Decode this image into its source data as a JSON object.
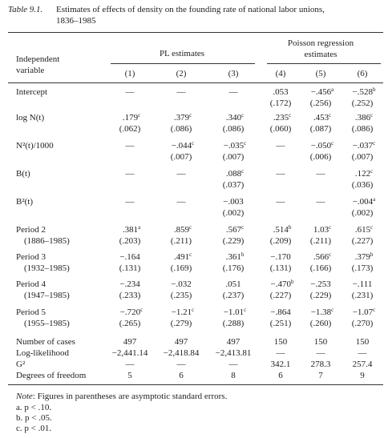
{
  "caption": {
    "number": "Table 9.1.",
    "text": "Estimates of effects of density on the founding rate of national labor unions,",
    "text2": "1836–1985"
  },
  "header": {
    "variable": [
      "Independent",
      "variable"
    ],
    "group1": "PL estimates",
    "group2": [
      "Poisson regression",
      "estimates"
    ],
    "columns": [
      "(1)",
      "(2)",
      "(3)",
      "(4)",
      "(5)",
      "(6)"
    ]
  },
  "rows": [
    {
      "label": "Intercept",
      "est": [
        "—",
        "—",
        "—",
        ".053",
        {
          "text": "−.456",
          "sup": "a"
        },
        {
          "text": "−.528",
          "sup": "b"
        }
      ],
      "se": [
        null,
        null,
        null,
        "(.172)",
        "(.256)",
        "(.252)"
      ]
    },
    {
      "label": "log N(t)",
      "est": [
        {
          "text": ".179",
          "sup": "c"
        },
        {
          "text": ".379",
          "sup": "c"
        },
        {
          "text": ".340",
          "sup": "c"
        },
        {
          "text": ".235",
          "sup": "c"
        },
        {
          "text": ".453",
          "sup": "c"
        },
        {
          "text": ".386",
          "sup": "c"
        }
      ],
      "se": [
        "(.062)",
        "(.086)",
        "(.086)",
        "(.060)",
        "(.087)",
        "(.086)"
      ]
    },
    {
      "label": "N²(t)/1000",
      "est": [
        "—",
        {
          "text": "−.044",
          "sup": "c"
        },
        {
          "text": "−.035",
          "sup": "c"
        },
        "—",
        {
          "text": "−.050",
          "sup": "c"
        },
        {
          "text": "−.037",
          "sup": "c"
        }
      ],
      "se": [
        null,
        "(.007)",
        "(.007)",
        null,
        "(.006)",
        "(.007)"
      ]
    },
    {
      "label": "B(t)",
      "est": [
        "—",
        "—",
        {
          "text": ".088",
          "sup": "c"
        },
        "—",
        "—",
        {
          "text": ".122",
          "sup": "c"
        }
      ],
      "se": [
        null,
        null,
        "(.037)",
        null,
        null,
        "(.036)"
      ]
    },
    {
      "label": "B²(t)",
      "est": [
        "—",
        "—",
        "−.003",
        "—",
        "—",
        {
          "text": "−.004",
          "sup": "a"
        }
      ],
      "se": [
        null,
        null,
        "(.002)",
        null,
        null,
        "(.002)"
      ]
    },
    {
      "label": "Period 2",
      "sublabel": "(1886–1985)",
      "est": [
        {
          "text": ".381",
          "sup": "a"
        },
        {
          "text": ".859",
          "sup": "c"
        },
        {
          "text": ".567",
          "sup": "c"
        },
        {
          "text": ".514",
          "sup": "b"
        },
        {
          "text": "1.03",
          "sup": "c"
        },
        {
          "text": ".615",
          "sup": "c"
        }
      ],
      "se": [
        "(.203)",
        "(.211)",
        "(.229)",
        "(.209)",
        "(.211)",
        "(.227)"
      ]
    },
    {
      "label": "Period 3",
      "sublabel": "(1932–1985)",
      "est": [
        "−.164",
        {
          "text": ".491",
          "sup": "c"
        },
        {
          "text": ".361",
          "sup": "b"
        },
        "−.170",
        {
          "text": ".566",
          "sup": "c"
        },
        {
          "text": ".379",
          "sup": "b"
        }
      ],
      "se": [
        "(.131)",
        "(.169)",
        "(.176)",
        "(.131)",
        "(.166)",
        "(.173)"
      ]
    },
    {
      "label": "Period 4",
      "sublabel": "(1947–1985)",
      "est": [
        "−.234",
        "−.032",
        ".051",
        {
          "text": "−.470",
          "sup": "b"
        },
        "−.253",
        "−.111"
      ],
      "se": [
        "(.233)",
        "(.235)",
        "(.237)",
        "(.227)",
        "(.229)",
        "(.231)"
      ]
    },
    {
      "label": "Period 5",
      "sublabel": "(1955–1985)",
      "est": [
        {
          "text": "−.720",
          "sup": "c"
        },
        {
          "text": "−1.21",
          "sup": "c"
        },
        {
          "text": "−1.01",
          "sup": "c"
        },
        "−.864",
        {
          "text": "−1.38",
          "sup": "c"
        },
        {
          "text": "−1.07",
          "sup": "c"
        }
      ],
      "se": [
        "(.265)",
        "(.279)",
        "(.288)",
        "(.251)",
        "(.260)",
        "(.270)"
      ]
    }
  ],
  "stats": [
    {
      "label": "Number of cases",
      "values": [
        "497",
        "497",
        "497",
        "150",
        "150",
        "150"
      ]
    },
    {
      "label": "Log-likelihood",
      "values": [
        "−2,441.14",
        "−2,418.84",
        "−2,413.81",
        "—",
        "—",
        "—"
      ]
    },
    {
      "label": "G²",
      "values": [
        "—",
        "—",
        "—",
        "342.1",
        "278.3",
        "257.4"
      ]
    },
    {
      "label": "Degrees of freedom",
      "values": [
        "5",
        "6",
        "8",
        "6",
        "7",
        "9"
      ]
    }
  ],
  "notes": {
    "note_label": "Note",
    "note": ": Figures in parentheses are asymptotic standard errors.",
    "items": [
      "a. p < .10.",
      "b. p < .05.",
      "c. p < .01."
    ]
  }
}
